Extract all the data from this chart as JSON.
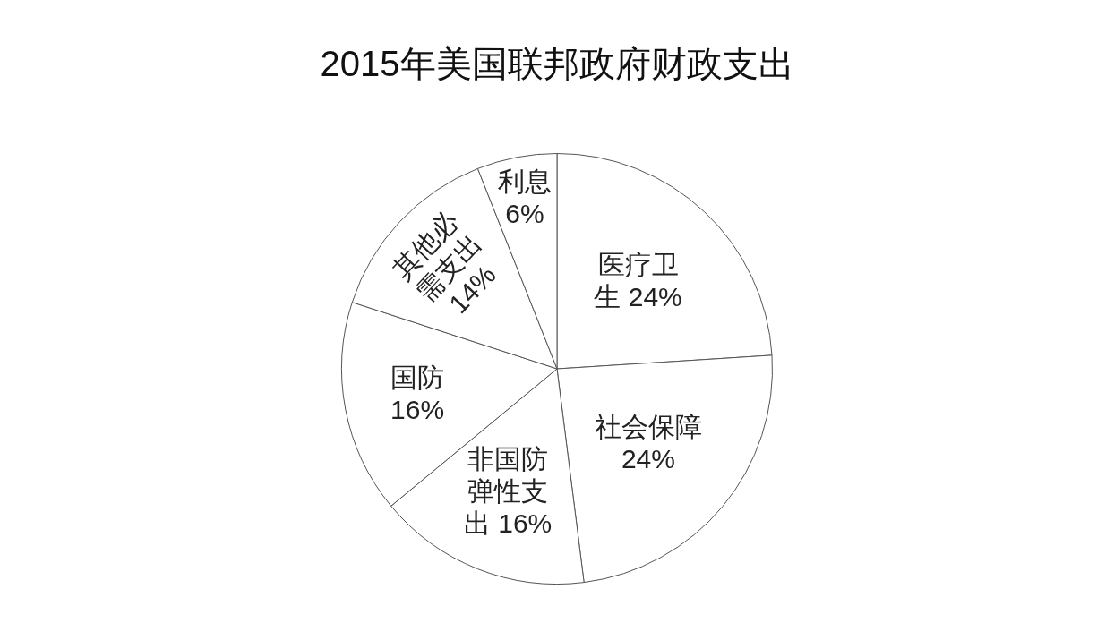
{
  "chart_data": {
    "type": "pie",
    "title": "2015年美国联邦政府财政支出",
    "categories": [
      "医疗卫生",
      "社会保障",
      "非国防弹性支出",
      "国防",
      "其他必需支出",
      "利息"
    ],
    "values": [
      24,
      24,
      16,
      16,
      14,
      6
    ],
    "colors": [
      "#ffffff",
      "#ffffff",
      "#ffffff",
      "#ffffff",
      "#ffffff",
      "#ffffff"
    ],
    "value_labels": [
      "24%",
      "24%",
      "16%",
      "16%",
      "14%",
      "6%"
    ]
  }
}
